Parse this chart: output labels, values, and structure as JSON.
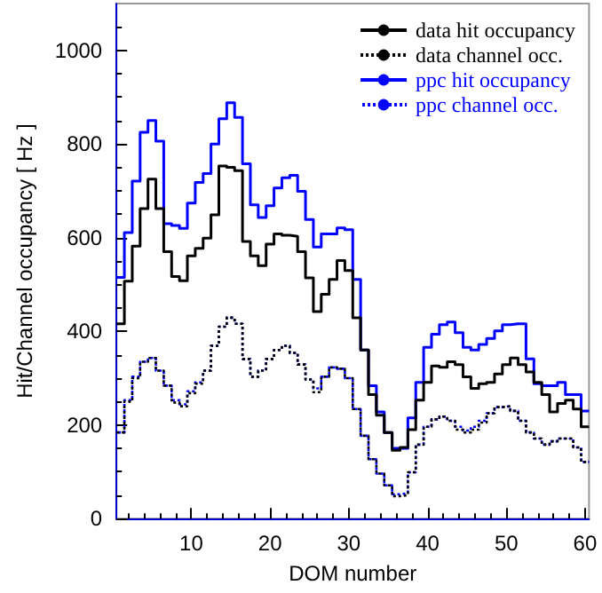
{
  "chart_data": {
    "type": "step",
    "xlabel": "DOM number",
    "ylabel": "Hit/Channel occupancy [ Hz ]",
    "x": [
      1,
      2,
      3,
      4,
      5,
      6,
      7,
      8,
      9,
      10,
      11,
      12,
      13,
      14,
      15,
      16,
      17,
      18,
      19,
      20,
      21,
      22,
      23,
      24,
      25,
      26,
      27,
      28,
      29,
      30,
      31,
      32,
      33,
      34,
      35,
      36,
      37,
      38,
      39,
      40,
      41,
      42,
      43,
      44,
      45,
      46,
      47,
      48,
      49,
      50,
      51,
      52,
      53,
      54,
      55,
      56,
      57,
      58,
      59,
      60
    ],
    "series": [
      {
        "name": "data hit occupancy",
        "color": "#000000",
        "line_style": "solid",
        "values": [
          416,
          507,
          582,
          662,
          725,
          662,
          570,
          517,
          508,
          561,
          577,
          599,
          649,
          753,
          750,
          743,
          592,
          561,
          540,
          586,
          608,
          605,
          603,
          570,
          514,
          442,
          479,
          511,
          551,
          530,
          429,
          360,
          265,
          221,
          184,
          146,
          152,
          190,
          253,
          291,
          326,
          323,
          335,
          329,
          303,
          278,
          288,
          291,
          309,
          329,
          343,
          329,
          313,
          291,
          265,
          228,
          246,
          253,
          234,
          196
        ]
      },
      {
        "name": "data channel occ.",
        "color": "#000000",
        "line_style": "dotted",
        "values": [
          184,
          250,
          300,
          335,
          343,
          316,
          284,
          248,
          240,
          268,
          288,
          316,
          369,
          410,
          429,
          416,
          341,
          303,
          316,
          341,
          360,
          369,
          354,
          329,
          297,
          270,
          303,
          323,
          320,
          300,
          234,
          177,
          127,
          96,
          71,
          48,
          50,
          99,
          158,
          196,
          212,
          218,
          209,
          190,
          184,
          190,
          205,
          225,
          238,
          240,
          230,
          209,
          184,
          171,
          158,
          165,
          171,
          171,
          152,
          121
        ]
      },
      {
        "name": "ppc hit occupancy",
        "color": "#0000ff",
        "line_style": "solid",
        "values": [
          515,
          611,
          721,
          825,
          850,
          806,
          630,
          626,
          620,
          674,
          718,
          737,
          800,
          854,
          888,
          857,
          758,
          670,
          643,
          668,
          706,
          728,
          733,
          699,
          639,
          580,
          608,
          608,
          621,
          617,
          511,
          360,
          284,
          228,
          184,
          150,
          150,
          215,
          291,
          366,
          394,
          414,
          420,
          397,
          366,
          360,
          372,
          385,
          401,
          414,
          416,
          416,
          341,
          288,
          284,
          284,
          291,
          265,
          265,
          230
        ]
      },
      {
        "name": "ppc channel occ.",
        "color": "#0000ff",
        "line_style": "dotted",
        "values": [
          184,
          253,
          303,
          335,
          343,
          316,
          284,
          253,
          244,
          272,
          291,
          316,
          369,
          410,
          429,
          416,
          341,
          303,
          316,
          341,
          360,
          369,
          354,
          329,
          297,
          278,
          303,
          323,
          320,
          300,
          234,
          177,
          127,
          96,
          71,
          52,
          54,
          99,
          158,
          196,
          212,
          218,
          209,
          196,
          188,
          196,
          209,
          225,
          238,
          240,
          230,
          209,
          184,
          171,
          158,
          165,
          171,
          171,
          152,
          121
        ]
      }
    ],
    "xlim": [
      0.5,
      60.5
    ],
    "xticks": [
      10,
      20,
      30,
      40,
      50,
      60
    ],
    "ylim": [
      0,
      1100
    ],
    "yticks": [
      0,
      200,
      400,
      600,
      800,
      1000
    ],
    "grid": false,
    "legend": "top right"
  }
}
